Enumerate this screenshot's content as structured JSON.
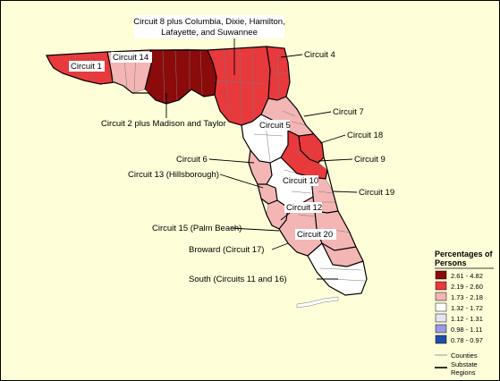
{
  "colors": {
    "background": "#fefed8",
    "c1": "#8b0a0a",
    "c2": "#e8393c",
    "c3": "#f4b5b5",
    "c4": "#ffffff",
    "c5": "#e4e4f4",
    "c6": "#9a9ae6",
    "c7": "#1f4fa8"
  },
  "legend": {
    "title_line1": "Percentages of",
    "title_line2": "Persons",
    "classes": [
      {
        "label": "2.61 - 4.82",
        "color": "#8b0a0a"
      },
      {
        "label": "2.19 - 2.60",
        "color": "#e8393c"
      },
      {
        "label": "1.73 - 2.18",
        "color": "#f4b5b5"
      },
      {
        "label": "1.32 - 1.72",
        "color": "#ffffff"
      },
      {
        "label": "1.12 - 1.31",
        "color": "#e4e4f4"
      },
      {
        "label": "0.98 - 1.11",
        "color": "#9a9ae6"
      },
      {
        "label": "0.78 - 0.97",
        "color": "#1f4fa8"
      }
    ],
    "counties_label": "Counties",
    "substate_line1": "Substate",
    "substate_line2": "Regions"
  },
  "labels": {
    "circuit8_line1": "Circuit 8 plus Columbia, Dixie, Hamilton,",
    "circuit8_line2": "Lafayette, and Suwannee",
    "circuit1": "Circuit 1",
    "circuit14": "Circuit 14",
    "circuit4": "Circuit 4",
    "circuit2": "Circuit 2 plus Madison and Taylor",
    "circuit5": "Circuit 5",
    "circuit7": "Circuit 7",
    "circuit18": "Circuit 18",
    "circuit6": "Circuit 6",
    "circuit9": "Circuit 9",
    "circuit13": "Circuit 13 (Hillsborough)",
    "circuit10": "Circuit 10",
    "circuit19": "Circuit 19",
    "circuit12": "Circuit 12",
    "circuit15": "Circuit 15 (Palm Beach)",
    "circuit20": "Circuit 20",
    "broward": "Broward (Circuit 17)",
    "south": "South (Circuits 11 and 16)"
  }
}
